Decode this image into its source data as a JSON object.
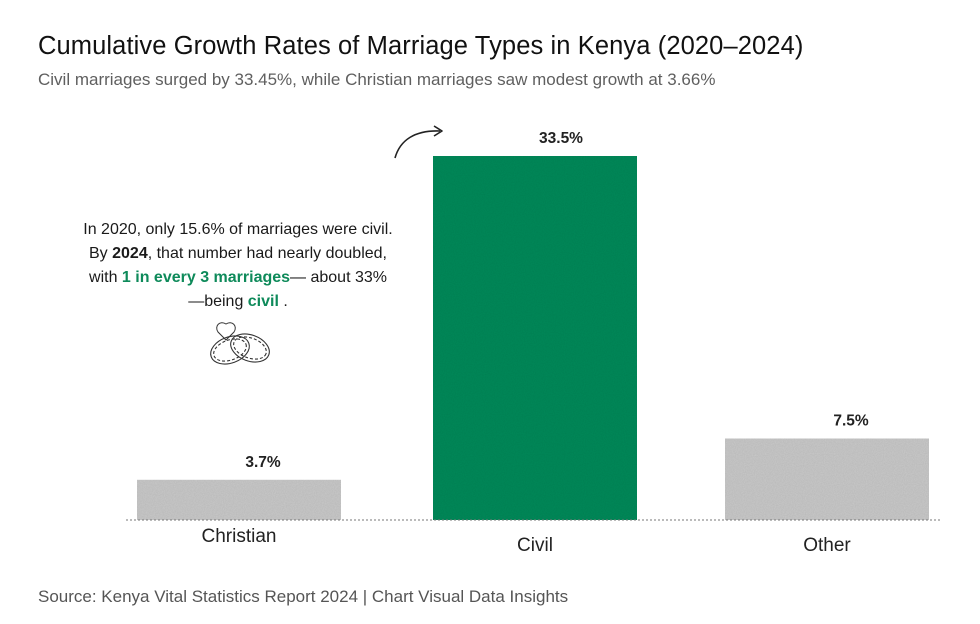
{
  "title": "Cumulative Growth Rates of Marriage Types in Kenya (2020–2024)",
  "subtitle": "Civil marriages surged by 33.45%, while Christian marriages saw modest growth at 3.66%",
  "annotation": {
    "part1": "In 2020, only 15.6% of marriages were civil. By ",
    "year": "2024",
    "part2": ", that number had nearly doubled, with ",
    "highlight": "1 in every 3 marriages",
    "part3": "— about 33%—being ",
    "civil_word": "civil",
    "part4": " ."
  },
  "source": "Source: Kenya Vital Statistics Report 2024 | Chart Visual Data Insights",
  "colors": {
    "civil": "#0e8a5a",
    "other_bars": "#c9c9c9",
    "highlight_text": "#0e8a5a"
  },
  "icons": [
    "curved-arrow-icon",
    "interlocked-rings-icon"
  ],
  "chart_data": {
    "type": "bar",
    "title": "Cumulative Growth Rates of Marriage Types in Kenya (2020–2024)",
    "subtitle": "Civil marriages surged by 33.45%, while Christian marriages saw modest growth at 3.66%",
    "categories": [
      "Christian",
      "Civil",
      "Other"
    ],
    "values": [
      3.7,
      33.5,
      7.5
    ],
    "data_labels": [
      "3.7%",
      "33.5%",
      "7.5%"
    ],
    "highlight_category": "Civil",
    "xlabel": "",
    "ylabel": "",
    "ylim": [
      0,
      33.5
    ],
    "grid": false
  }
}
